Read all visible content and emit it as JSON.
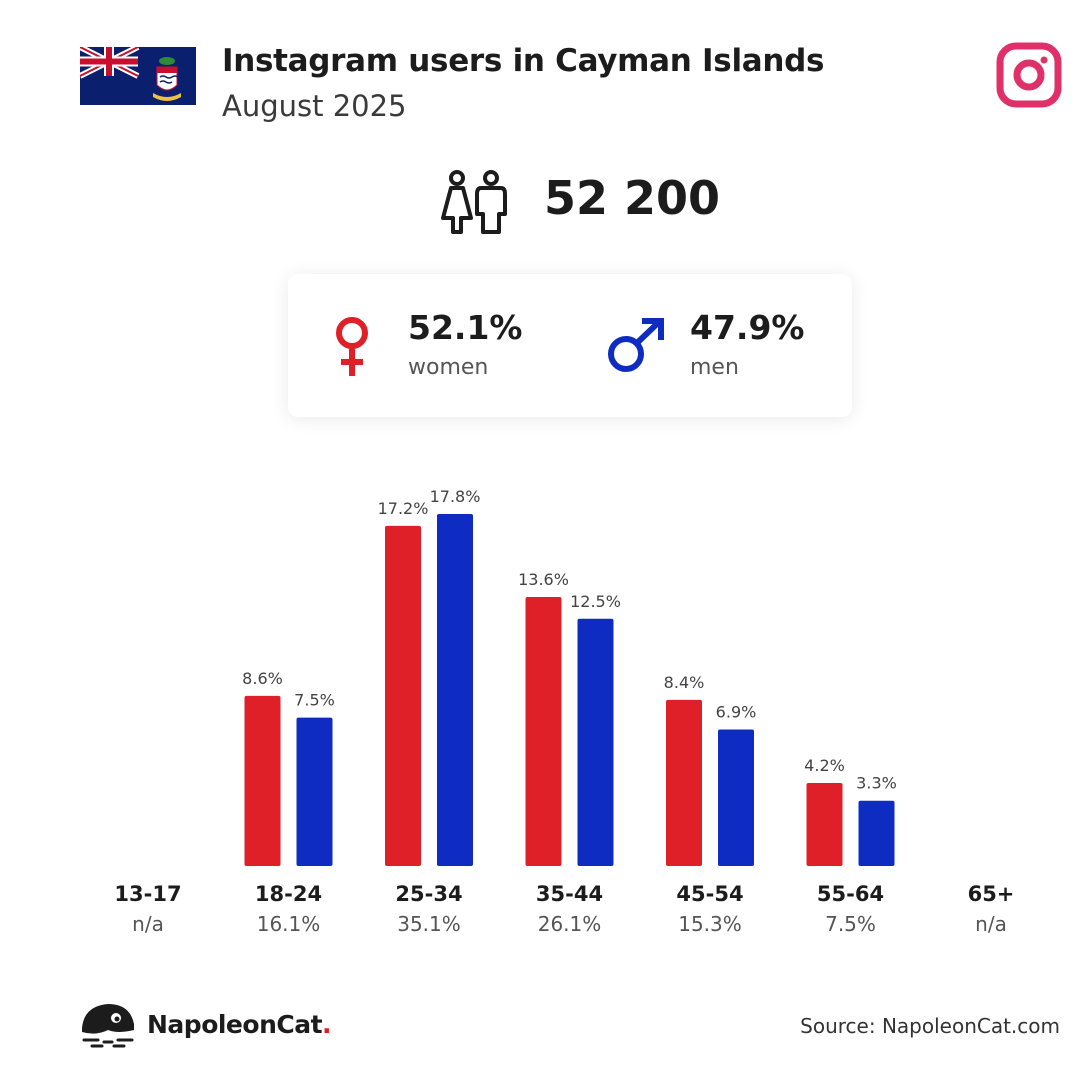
{
  "header": {
    "title": "Instagram users in Cayman Islands",
    "subtitle": "August 2025",
    "flag_icon": "cayman-islands-flag-icon",
    "platform_icon": "instagram-logo-icon"
  },
  "summary": {
    "total_users": "52 200",
    "people_icon": "users-icon"
  },
  "gender": {
    "women": {
      "pct": "52.1%",
      "label": "women",
      "icon": "female-symbol-icon",
      "color": "#e02028"
    },
    "men": {
      "pct": "47.9%",
      "label": "men",
      "icon": "male-symbol-icon",
      "color": "#0f2cc2"
    }
  },
  "chart_data": {
    "type": "bar",
    "categories": [
      "13-17",
      "18-24",
      "25-34",
      "35-44",
      "45-54",
      "55-64",
      "65+"
    ],
    "category_totals": [
      "n/a",
      "16.1%",
      "35.1%",
      "26.1%",
      "15.3%",
      "7.5%",
      "n/a"
    ],
    "series": [
      {
        "values": [
          null,
          8.6,
          17.2,
          13.6,
          8.4,
          4.2,
          null
        ],
        "labels": [
          "",
          "8.6%",
          "17.2%",
          "13.6%",
          "8.4%",
          "4.2%",
          ""
        ],
        "color": "#e02028"
      },
      {
        "values": [
          null,
          7.5,
          17.8,
          12.5,
          6.9,
          3.3,
          null
        ],
        "labels": [
          "",
          "7.5%",
          "17.8%",
          "12.5%",
          "6.9%",
          "3.3%",
          ""
        ],
        "color": "#0f2cc2"
      }
    ],
    "ylim": [
      0,
      17.8
    ],
    "grid": false,
    "legend": "none"
  },
  "footer": {
    "brand_name": "NapoleonCat",
    "brand_dot": ".",
    "brand_icon": "napoleoncat-logo-icon",
    "source": "Source: NapoleonCat.com"
  }
}
